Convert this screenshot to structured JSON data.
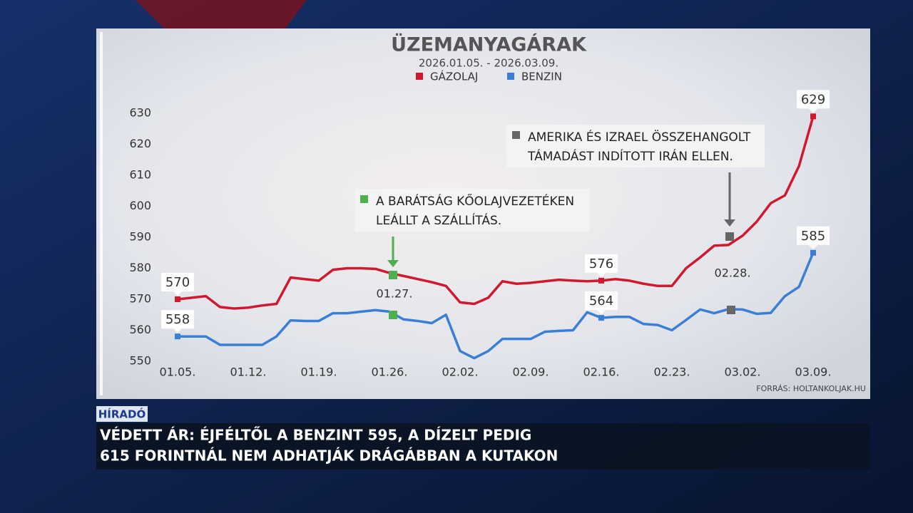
{
  "chart_data": {
    "type": "line",
    "title": "ÜZEMANYAGÁRAK",
    "subtitle": "2026.01.05. - 2026.03.09.",
    "source": "FORRÁS: HOLTANKOLJAK.HU",
    "categories": [
      "01.05.",
      null,
      null,
      null,
      null,
      "01.12.",
      null,
      null,
      null,
      null,
      "01.19.",
      null,
      null,
      null,
      null,
      "01.26.",
      null,
      null,
      null,
      null,
      "02.02.",
      null,
      null,
      null,
      null,
      "02.09.",
      null,
      null,
      null,
      null,
      "02.16.",
      null,
      null,
      null,
      null,
      "02.23.",
      null,
      null,
      null,
      null,
      "03.02.",
      null,
      null,
      null,
      null,
      "03.09."
    ],
    "series": [
      {
        "name": "GÁZOLAJ",
        "color": "#d0182e",
        "labeled_indices": [
          0,
          30,
          45
        ],
        "values": [
          570,
          570.5,
          571,
          567.5,
          567,
          567.3,
          568,
          568.5,
          577,
          576.5,
          576,
          579.5,
          580,
          580,
          579.8,
          578.5,
          577.5,
          576.5,
          575.5,
          574.3,
          569,
          568.5,
          570.5,
          575.8,
          575,
          575.3,
          575.8,
          576.3,
          576,
          575.8,
          576,
          576.5,
          576,
          575,
          574.3,
          574.3,
          580,
          583.5,
          587.3,
          587.5,
          590.5,
          595,
          601,
          603.5,
          613,
          629
        ]
      },
      {
        "name": "BENZIN",
        "color": "#3a7fd5",
        "labeled_indices": [
          0,
          30,
          45
        ],
        "values": [
          558,
          558,
          558,
          555.3,
          555.3,
          555.3,
          555.3,
          558,
          563.2,
          563,
          563,
          565.5,
          565.5,
          566,
          566.5,
          566,
          563.5,
          563,
          562.3,
          565,
          553.3,
          551,
          553.3,
          557.2,
          557.2,
          557.2,
          559.5,
          559.8,
          560,
          565.8,
          564,
          564.3,
          564.3,
          562,
          561.7,
          560,
          563.3,
          566.7,
          565.5,
          566.8,
          566.7,
          565.3,
          565.6,
          571,
          574,
          585
        ]
      }
    ],
    "ylim": [
      550,
      630
    ],
    "yticks": [
      550,
      560,
      570,
      580,
      590,
      600,
      610,
      620,
      630
    ],
    "annotations": [
      {
        "lines": [
          "A BARÁTSÁG KŐOLAJVEZETÉKEN",
          "LEÁLLT A SZÁLLÍTÁS."
        ],
        "date": "01.27.",
        "color": "#4caf50"
      },
      {
        "lines": [
          "AMERIKA ÉS IZRAEL ÖSSZEHANGOLT",
          "TÁMADÁST INDÍTOTT IRÁN ELLEN."
        ],
        "date": "02.28.",
        "color": "#666666"
      }
    ]
  },
  "news_bar": {
    "label": "HÍRADÓ",
    "lines": [
      "VÉDETT ÁR: ÉJFÉLTŐL A BENZINT 595, A DÍZELT PEDIG",
      "615 FORINTNÁL NEM ADHATJÁK DRÁGÁBBAN A KUTAKON"
    ]
  }
}
